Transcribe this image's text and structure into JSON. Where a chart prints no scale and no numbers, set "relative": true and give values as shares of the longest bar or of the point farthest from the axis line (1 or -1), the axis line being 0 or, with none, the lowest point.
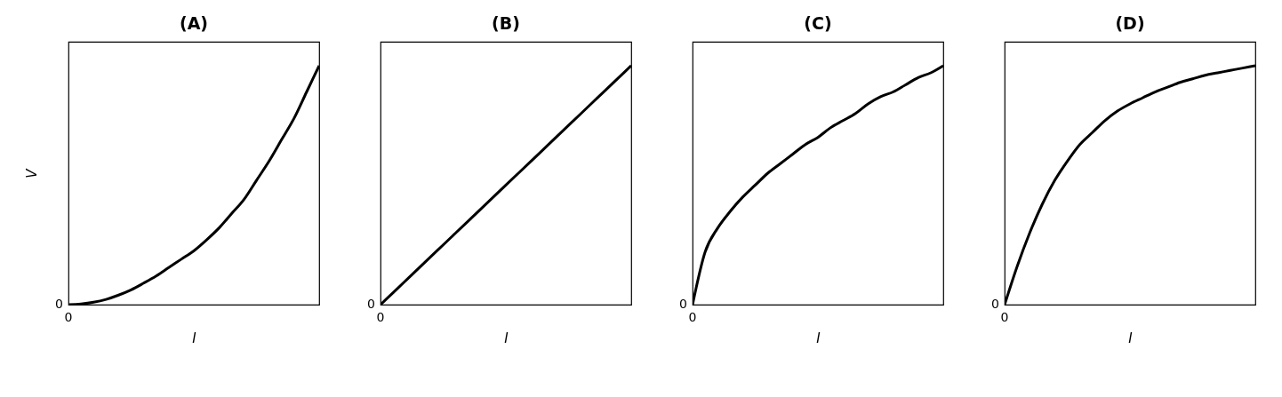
{
  "chart_data": [
    {
      "type": "line",
      "title": "(A)",
      "xlabel": "I",
      "ylabel": "V",
      "relative": true,
      "annotations": [
        "0",
        "0"
      ],
      "categories": [
        null,
        null,
        null,
        null,
        null,
        null,
        null,
        null,
        null,
        null,
        null,
        null,
        null,
        null,
        null,
        null,
        null,
        null,
        null,
        null,
        null
      ],
      "series": [
        {
          "color": "#000000",
          "values": [
            0,
            0.003,
            0.01,
            0.022,
            0.04,
            0.062,
            0.09,
            0.12,
            0.155,
            0.19,
            0.225,
            0.27,
            0.32,
            0.38,
            0.44,
            0.52,
            0.6,
            0.69,
            0.78,
            0.89,
            1
          ]
        }
      ]
    },
    {
      "type": "line",
      "title": "(B)",
      "xlabel": "I",
      "relative": true,
      "annotations": [
        "0",
        "0"
      ],
      "categories": [
        null,
        null,
        null,
        null,
        null,
        null,
        null,
        null,
        null,
        null,
        null,
        null,
        null,
        null,
        null,
        null,
        null,
        null,
        null,
        null,
        null
      ],
      "series": [
        {
          "color": "#000000",
          "values": [
            0,
            0.05,
            0.1,
            0.15,
            0.2,
            0.25,
            0.3,
            0.35,
            0.4,
            0.45,
            0.5,
            0.55,
            0.6,
            0.65,
            0.7,
            0.75,
            0.8,
            0.85,
            0.9,
            0.95,
            1
          ]
        }
      ]
    },
    {
      "type": "line",
      "title": "(C)",
      "xlabel": "I",
      "relative": true,
      "annotations": [
        "0",
        "0"
      ],
      "categories": [
        null,
        null,
        null,
        null,
        null,
        null,
        null,
        null,
        null,
        null,
        null,
        null,
        null,
        null,
        null,
        null,
        null,
        null,
        null,
        null,
        null
      ],
      "series": [
        {
          "color": "#000000",
          "values": [
            0,
            0.22,
            0.32,
            0.39,
            0.45,
            0.5,
            0.55,
            0.59,
            0.63,
            0.67,
            0.7,
            0.74,
            0.77,
            0.8,
            0.84,
            0.87,
            0.89,
            0.92,
            0.95,
            0.97,
            1
          ]
        }
      ]
    },
    {
      "type": "line",
      "title": "(D)",
      "xlabel": "I",
      "relative": true,
      "annotations": [
        "0",
        "0"
      ],
      "categories": [
        null,
        null,
        null,
        null,
        null,
        null,
        null,
        null,
        null,
        null,
        null,
        null,
        null,
        null,
        null,
        null,
        null,
        null,
        null,
        null,
        null
      ],
      "series": [
        {
          "color": "#000000",
          "values": [
            0,
            0.16,
            0.3,
            0.42,
            0.52,
            0.6,
            0.67,
            0.72,
            0.77,
            0.81,
            0.84,
            0.865,
            0.89,
            0.91,
            0.93,
            0.945,
            0.96,
            0.97,
            0.98,
            0.99,
            1
          ]
        }
      ]
    }
  ]
}
